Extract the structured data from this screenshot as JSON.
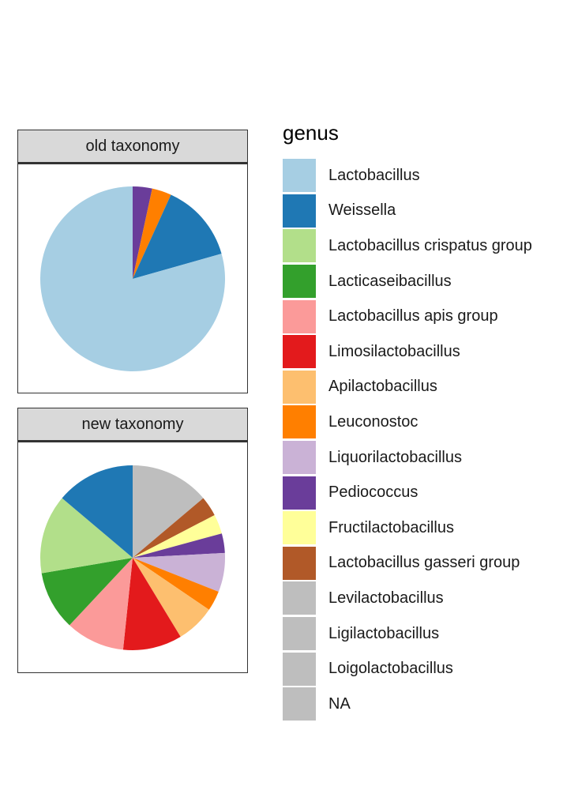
{
  "chart_data": {
    "type": "pie",
    "legend": {
      "title": "genus",
      "placement": "right",
      "entries": [
        {
          "name": "Lactobacillus",
          "color": "#A6CEE3"
        },
        {
          "name": "Weissella",
          "color": "#1F78B4"
        },
        {
          "name": "Lactobacillus crispatus group",
          "color": "#B2DF8A"
        },
        {
          "name": "Lacticaseibacillus",
          "color": "#33A02C"
        },
        {
          "name": "Lactobacillus apis group",
          "color": "#FB9A99"
        },
        {
          "name": "Limosilactobacillus",
          "color": "#E31A1C"
        },
        {
          "name": "Apilactobacillus",
          "color": "#FDBF6F"
        },
        {
          "name": "Leuconostoc",
          "color": "#FF7F00"
        },
        {
          "name": "Liquorilactobacillus",
          "color": "#CAB2D6"
        },
        {
          "name": "Pediococcus",
          "color": "#6A3D9A"
        },
        {
          "name": "Fructilactobacillus",
          "color": "#FFFF99"
        },
        {
          "name": "Lactobacillus gasseri group",
          "color": "#B15928"
        },
        {
          "name": "Levilactobacillus",
          "color": "#BEBEBE"
        },
        {
          "name": "Ligilactobacillus",
          "color": "#BEBEBE"
        },
        {
          "name": "Loigolactobacillus",
          "color": "#BEBEBE"
        },
        {
          "name": "NA",
          "color": "#BEBEBE"
        }
      ]
    },
    "facets": [
      {
        "title": "old taxonomy",
        "slices": [
          {
            "name": "Pediococcus",
            "value": 3.4
          },
          {
            "name": "Leuconostoc",
            "value": 3.4
          },
          {
            "name": "Weissella",
            "value": 13.8
          },
          {
            "name": "Lactobacillus",
            "value": 79.4
          }
        ]
      },
      {
        "title": "new taxonomy",
        "slices": [
          {
            "name": "NA",
            "value": 13.4
          },
          {
            "name": "Lactobacillus gasseri group",
            "value": 3.4
          },
          {
            "name": "Fructilactobacillus",
            "value": 3.3
          },
          {
            "name": "Pediococcus",
            "value": 3.3
          },
          {
            "name": "Liquorilactobacillus",
            "value": 6.6
          },
          {
            "name": "Leuconostoc",
            "value": 3.4
          },
          {
            "name": "Apilactobacillus",
            "value": 6.6
          },
          {
            "name": "Limosilactobacillus",
            "value": 10.0
          },
          {
            "name": "Lactobacillus apis group",
            "value": 10.0
          },
          {
            "name": "Lacticaseibacillus",
            "value": 10.0
          },
          {
            "name": "Lactobacillus crispatus group",
            "value": 13.4
          },
          {
            "name": "Weissella",
            "value": 13.4
          }
        ]
      }
    ]
  }
}
